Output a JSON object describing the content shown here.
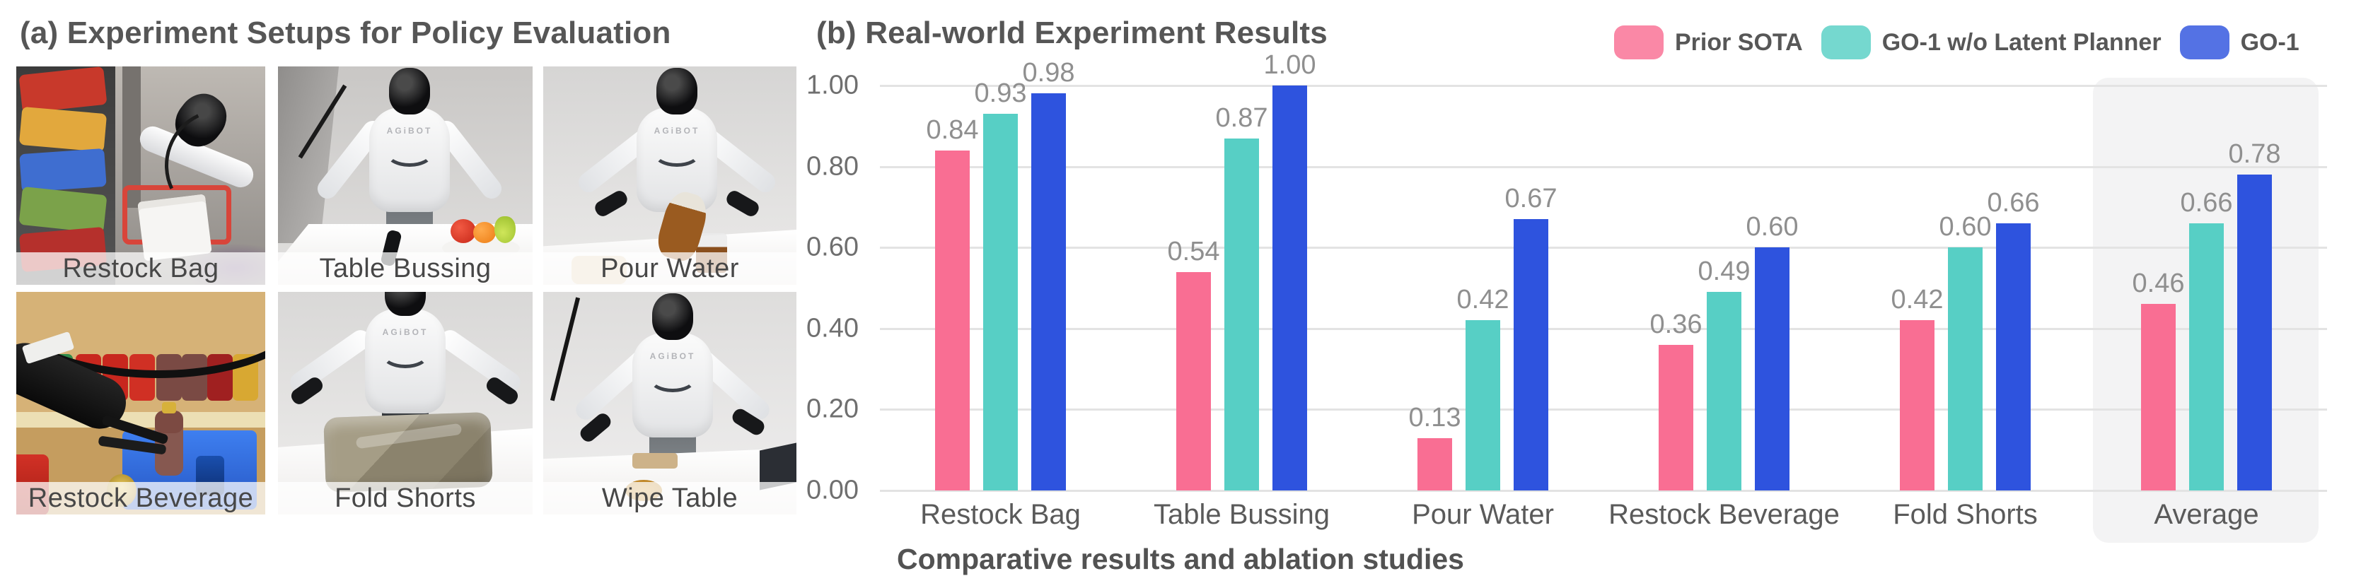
{
  "panel_a": {
    "title": "(a) Experiment Setups for Policy Evaluation",
    "robot_brand": "AGiBOT",
    "photos": [
      {
        "label": "Restock Bag"
      },
      {
        "label": "Table Bussing"
      },
      {
        "label": "Pour Water"
      },
      {
        "label": "Restock Beverage"
      },
      {
        "label": "Fold Shorts"
      },
      {
        "label": "Wipe Table"
      }
    ]
  },
  "panel_b": {
    "title": "(b) Real-world Experiment Results",
    "caption": "Comparative results and ablation studies"
  },
  "chart_data": {
    "type": "bar",
    "title": "(b) Real-world Experiment Results",
    "categories": [
      "Restock Bag",
      "Table Bussing",
      "Pour Water",
      "Restock Beverage",
      "Fold Shorts",
      "Average"
    ],
    "series": [
      {
        "name": "Prior SOTA",
        "color": "#F96E93",
        "values": [
          0.84,
          0.54,
          0.13,
          0.36,
          0.42,
          0.46
        ]
      },
      {
        "name": "GO-1 w/o Latent Planner",
        "color": "#57CFC5",
        "values": [
          0.93,
          0.87,
          0.42,
          0.49,
          0.6,
          0.66
        ]
      },
      {
        "name": "GO-1",
        "color": "#2E53DE",
        "values": [
          0.98,
          1.0,
          0.67,
          0.6,
          0.66,
          0.78
        ]
      }
    ],
    "xlabel": "",
    "ylabel": "",
    "ylim": [
      0,
      1.0
    ],
    "yticks": [
      "1.00",
      "0.80",
      "0.60",
      "0.40",
      "0.20",
      "0.00"
    ],
    "grid": true,
    "grid_color": "#E3E3E3",
    "legend_position": "top-right",
    "value_labels": true,
    "value_label_color": "#8f8f8f",
    "highlight_category": "Average",
    "highlight_color": "#F3F3F4"
  }
}
